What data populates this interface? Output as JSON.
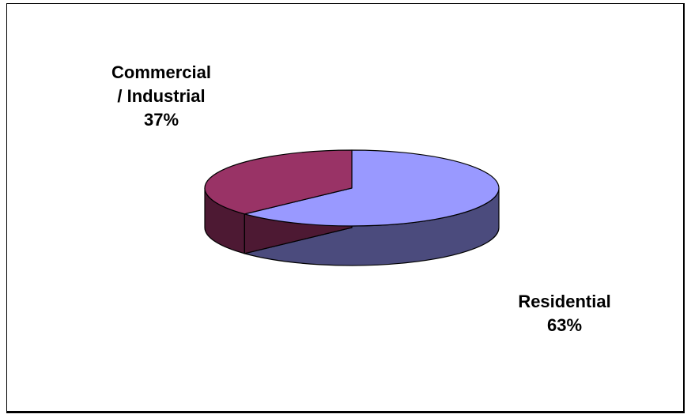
{
  "chart_data": {
    "type": "pie",
    "style": "3d",
    "slices": [
      {
        "label_lines": [
          "Residential",
          "63%"
        ],
        "value": 63,
        "color": "#9999ff",
        "side_color": "#4b4b7d"
      },
      {
        "label_lines": [
          "Commercial",
          "/ Industrial",
          "37%"
        ],
        "value": 37,
        "color": "#993366",
        "side_color": "#4d1933"
      }
    ],
    "legend": "none"
  }
}
